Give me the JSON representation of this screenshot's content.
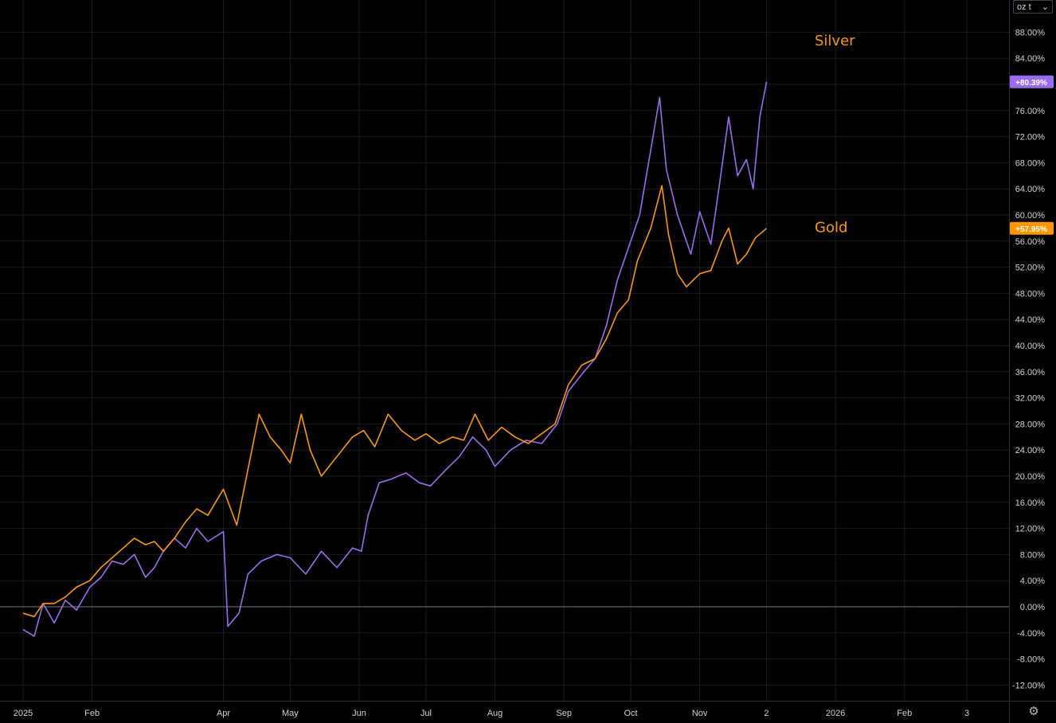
{
  "unit_selector": {
    "value": "oz t",
    "chevron": "chevron-down-icon"
  },
  "settings_icon": "gear-icon",
  "chart_data": {
    "type": "line",
    "y_unit": "%",
    "ylim": [
      -14,
      92
    ],
    "y_ticks": [
      "88.00%",
      "84.00%",
      "80.00%",
      "76.00%",
      "72.00%",
      "68.00%",
      "64.00%",
      "60.00%",
      "56.00%",
      "52.00%",
      "48.00%",
      "44.00%",
      "40.00%",
      "36.00%",
      "32.00%",
      "28.00%",
      "24.00%",
      "20.00%",
      "16.00%",
      "12.00%",
      "8.00%",
      "4.00%",
      "0.00%",
      "-4.00%",
      "-8.00%",
      "-12.00%"
    ],
    "y_tick_values": [
      88,
      84,
      80,
      76,
      72,
      68,
      64,
      60,
      56,
      52,
      48,
      44,
      40,
      36,
      32,
      28,
      24,
      20,
      16,
      12,
      8,
      4,
      0,
      -4,
      -8,
      -12
    ],
    "x_ticks": [
      {
        "label": "2025",
        "date": "2025-01-01"
      },
      {
        "label": "Feb",
        "date": "2025-02-01"
      },
      {
        "label": "Apr",
        "date": "2025-04-01"
      },
      {
        "label": "May",
        "date": "2025-05-01"
      },
      {
        "label": "Jun",
        "date": "2025-06-01"
      },
      {
        "label": "Jul",
        "date": "2025-07-01"
      },
      {
        "label": "Aug",
        "date": "2025-08-01"
      },
      {
        "label": "Sep",
        "date": "2025-09-01"
      },
      {
        "label": "Oct",
        "date": "2025-10-01"
      },
      {
        "label": "Nov",
        "date": "2025-11-01"
      },
      {
        "label": "2",
        "date": "2025-12-01"
      },
      {
        "label": "2026",
        "date": "2026-01-01"
      },
      {
        "label": "Feb",
        "date": "2026-02-01"
      },
      {
        "label": "3",
        "date": "2026-03-01"
      }
    ],
    "grid": true,
    "baseline": 0,
    "series": [
      {
        "name": "Silver",
        "color": "#9c6cf0",
        "last_value_label": "+80.39%",
        "points": [
          [
            "2025-01-01",
            -3.5
          ],
          [
            "2025-01-06",
            -4.5
          ],
          [
            "2025-01-10",
            0.5
          ],
          [
            "2025-01-15",
            -2.5
          ],
          [
            "2025-01-20",
            1.0
          ],
          [
            "2025-01-25",
            -0.5
          ],
          [
            "2025-01-31",
            3.0
          ],
          [
            "2025-02-05",
            4.5
          ],
          [
            "2025-02-10",
            7.0
          ],
          [
            "2025-02-15",
            6.5
          ],
          [
            "2025-02-20",
            8.0
          ],
          [
            "2025-02-25",
            4.5
          ],
          [
            "2025-03-01",
            6.0
          ],
          [
            "2025-03-05",
            8.5
          ],
          [
            "2025-03-10",
            10.5
          ],
          [
            "2025-03-15",
            9.0
          ],
          [
            "2025-03-20",
            12.0
          ],
          [
            "2025-03-25",
            10.0
          ],
          [
            "2025-04-01",
            11.5
          ],
          [
            "2025-04-03",
            -3.0
          ],
          [
            "2025-04-08",
            -1.0
          ],
          [
            "2025-04-12",
            5.0
          ],
          [
            "2025-04-18",
            7.0
          ],
          [
            "2025-04-25",
            8.0
          ],
          [
            "2025-05-01",
            7.5
          ],
          [
            "2025-05-08",
            5.0
          ],
          [
            "2025-05-15",
            8.5
          ],
          [
            "2025-05-22",
            6.0
          ],
          [
            "2025-05-29",
            9.0
          ],
          [
            "2025-06-02",
            8.5
          ],
          [
            "2025-06-05",
            14.0
          ],
          [
            "2025-06-10",
            19.0
          ],
          [
            "2025-06-15",
            19.5
          ],
          [
            "2025-06-22",
            20.5
          ],
          [
            "2025-06-28",
            19.0
          ],
          [
            "2025-07-03",
            18.5
          ],
          [
            "2025-07-10",
            21.0
          ],
          [
            "2025-07-16",
            23.0
          ],
          [
            "2025-07-22",
            26.0
          ],
          [
            "2025-07-28",
            24.0
          ],
          [
            "2025-08-01",
            21.5
          ],
          [
            "2025-08-08",
            24.0
          ],
          [
            "2025-08-15",
            25.5
          ],
          [
            "2025-08-22",
            25.0
          ],
          [
            "2025-08-29",
            28.0
          ],
          [
            "2025-09-03",
            33.0
          ],
          [
            "2025-09-10",
            36.0
          ],
          [
            "2025-09-15",
            38.0
          ],
          [
            "2025-09-20",
            43.0
          ],
          [
            "2025-09-25",
            50.0
          ],
          [
            "2025-09-30",
            55.0
          ],
          [
            "2025-10-05",
            60.0
          ],
          [
            "2025-10-10",
            70.0
          ],
          [
            "2025-10-14",
            78.0
          ],
          [
            "2025-10-17",
            67.0
          ],
          [
            "2025-10-22",
            60.0
          ],
          [
            "2025-10-28",
            54.0
          ],
          [
            "2025-11-01",
            60.5
          ],
          [
            "2025-11-06",
            55.5
          ],
          [
            "2025-11-10",
            65.0
          ],
          [
            "2025-11-14",
            75.0
          ],
          [
            "2025-11-18",
            66.0
          ],
          [
            "2025-11-22",
            68.5
          ],
          [
            "2025-11-25",
            64.0
          ],
          [
            "2025-11-28",
            75.0
          ],
          [
            "2025-12-01",
            80.39
          ]
        ]
      },
      {
        "name": "Gold",
        "color": "#ff9800",
        "last_value_label": "+57.95%",
        "points": [
          [
            "2025-01-01",
            -1.0
          ],
          [
            "2025-01-06",
            -1.5
          ],
          [
            "2025-01-10",
            0.5
          ],
          [
            "2025-01-15",
            0.5
          ],
          [
            "2025-01-20",
            1.5
          ],
          [
            "2025-01-25",
            3.0
          ],
          [
            "2025-01-31",
            4.0
          ],
          [
            "2025-02-05",
            6.0
          ],
          [
            "2025-02-10",
            7.5
          ],
          [
            "2025-02-15",
            9.0
          ],
          [
            "2025-02-20",
            10.5
          ],
          [
            "2025-02-25",
            9.5
          ],
          [
            "2025-03-01",
            10.0
          ],
          [
            "2025-03-05",
            8.5
          ],
          [
            "2025-03-10",
            10.5
          ],
          [
            "2025-03-15",
            13.0
          ],
          [
            "2025-03-20",
            15.0
          ],
          [
            "2025-03-25",
            14.0
          ],
          [
            "2025-04-01",
            18.0
          ],
          [
            "2025-04-07",
            12.5
          ],
          [
            "2025-04-12",
            21.0
          ],
          [
            "2025-04-17",
            29.5
          ],
          [
            "2025-04-22",
            26.0
          ],
          [
            "2025-04-27",
            24.0
          ],
          [
            "2025-05-01",
            22.0
          ],
          [
            "2025-05-06",
            29.5
          ],
          [
            "2025-05-10",
            24.0
          ],
          [
            "2025-05-15",
            20.0
          ],
          [
            "2025-05-22",
            23.0
          ],
          [
            "2025-05-29",
            26.0
          ],
          [
            "2025-06-03",
            27.0
          ],
          [
            "2025-06-08",
            24.5
          ],
          [
            "2025-06-14",
            29.5
          ],
          [
            "2025-06-20",
            27.0
          ],
          [
            "2025-06-26",
            25.5
          ],
          [
            "2025-07-01",
            26.5
          ],
          [
            "2025-07-07",
            25.0
          ],
          [
            "2025-07-13",
            26.0
          ],
          [
            "2025-07-18",
            25.5
          ],
          [
            "2025-07-23",
            29.5
          ],
          [
            "2025-07-29",
            25.5
          ],
          [
            "2025-08-04",
            27.5
          ],
          [
            "2025-08-10",
            26.0
          ],
          [
            "2025-08-16",
            25.0
          ],
          [
            "2025-08-22",
            26.5
          ],
          [
            "2025-08-28",
            28.0
          ],
          [
            "2025-09-03",
            34.0
          ],
          [
            "2025-09-09",
            37.0
          ],
          [
            "2025-09-15",
            38.0
          ],
          [
            "2025-09-20",
            41.0
          ],
          [
            "2025-09-25",
            45.0
          ],
          [
            "2025-09-30",
            47.0
          ],
          [
            "2025-10-04",
            53.0
          ],
          [
            "2025-10-10",
            58.0
          ],
          [
            "2025-10-15",
            64.5
          ],
          [
            "2025-10-18",
            57.0
          ],
          [
            "2025-10-22",
            51.0
          ],
          [
            "2025-10-26",
            49.0
          ],
          [
            "2025-11-01",
            51.0
          ],
          [
            "2025-11-06",
            51.5
          ],
          [
            "2025-11-11",
            56.0
          ],
          [
            "2025-11-14",
            58.0
          ],
          [
            "2025-11-18",
            52.5
          ],
          [
            "2025-11-22",
            54.0
          ],
          [
            "2025-11-26",
            56.5
          ],
          [
            "2025-12-01",
            57.95
          ]
        ]
      }
    ],
    "annotations": [
      {
        "text": "Silver",
        "color": "#ff9800"
      },
      {
        "text": "Gold",
        "color": "#ff9800"
      }
    ]
  }
}
